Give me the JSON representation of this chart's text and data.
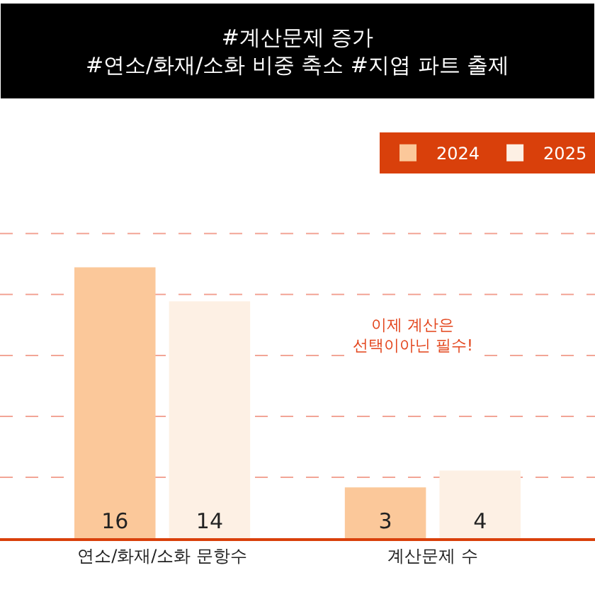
{
  "chart_data": {
    "type": "bar",
    "title": "#계산문제 증가\n#연소/화재/소화 비중 축소 #지엽 파트 출제",
    "categories": [
      "연소/화재/소화 문항수",
      "계산문제 수"
    ],
    "series": [
      {
        "name": "2024",
        "color": "#fbc89a",
        "values": [
          16,
          3
        ]
      },
      {
        "name": "2025",
        "color": "#fdf0e4",
        "values": [
          14,
          4
        ]
      }
    ],
    "ref_lines": [
      {
        "axis": "y",
        "value": 3.6,
        "color": "#f2a596",
        "line_style": "dashed"
      },
      {
        "axis": "y",
        "value": 7.2,
        "color": "#f2a596",
        "line_style": "dashed"
      },
      {
        "axis": "y",
        "value": 10.8,
        "color": "#f2a596",
        "line_style": "dashed"
      },
      {
        "axis": "y",
        "value": 14.4,
        "color": "#f2a596",
        "line_style": "dashed"
      },
      {
        "axis": "y",
        "value": 18,
        "color": "#f2a596",
        "line_style": "dashed"
      }
    ],
    "legend": "top right",
    "data_labels": true,
    "tick_labels": "x",
    "annotations": [
      "이제 계산은\n선택이아닌 필수!"
    ]
  }
}
